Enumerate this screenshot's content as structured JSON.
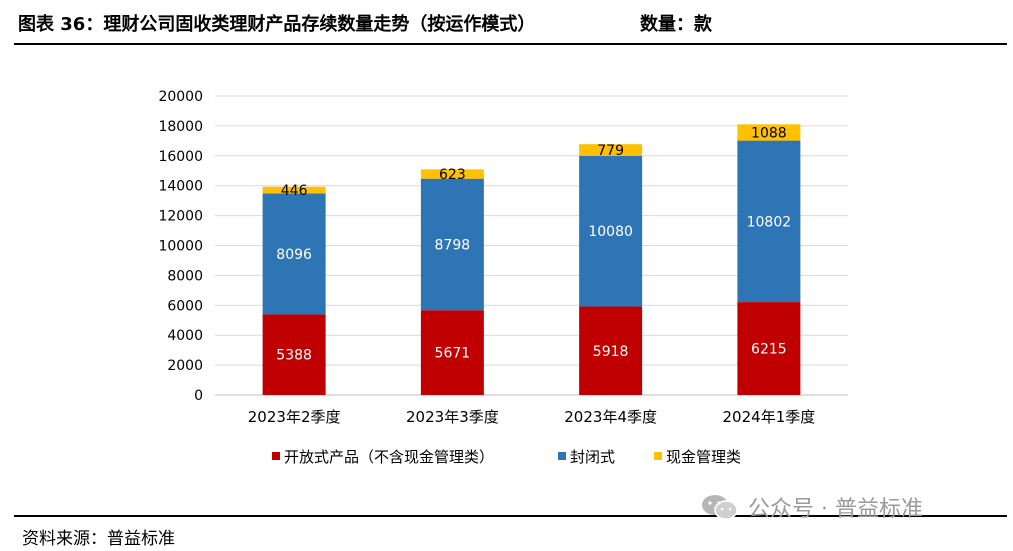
{
  "header": {
    "figure_label": "图表 36：理财公司固收类理财产品存续数量走势（按运作模式）",
    "unit_label": "数量：款"
  },
  "footer": {
    "source": "资料来源：普益标准",
    "watermark": "公众号 · 普益标准",
    "watermark_icon": "wechat-icon"
  },
  "chart_data": {
    "type": "bar",
    "stacked": true,
    "title": "",
    "xlabel": "",
    "ylabel": "",
    "categories": [
      "2023年2季度",
      "2023年3季度",
      "2023年4季度",
      "2024年1季度"
    ],
    "series": [
      {
        "name": "开放式产品（不含现金管理类）",
        "color": "#C00000",
        "values": [
          5388,
          5671,
          5918,
          6215
        ]
      },
      {
        "name": "封闭式",
        "color": "#2E75B6",
        "values": [
          8096,
          8798,
          10080,
          10802
        ]
      },
      {
        "name": "现金管理类",
        "color": "#FFC000",
        "values": [
          446,
          623,
          779,
          1088
        ]
      }
    ],
    "ylim": [
      0,
      20000
    ],
    "yticks": [
      0,
      2000,
      4000,
      6000,
      8000,
      10000,
      12000,
      14000,
      16000,
      18000,
      20000
    ],
    "grid": true,
    "legend_position": "bottom"
  }
}
